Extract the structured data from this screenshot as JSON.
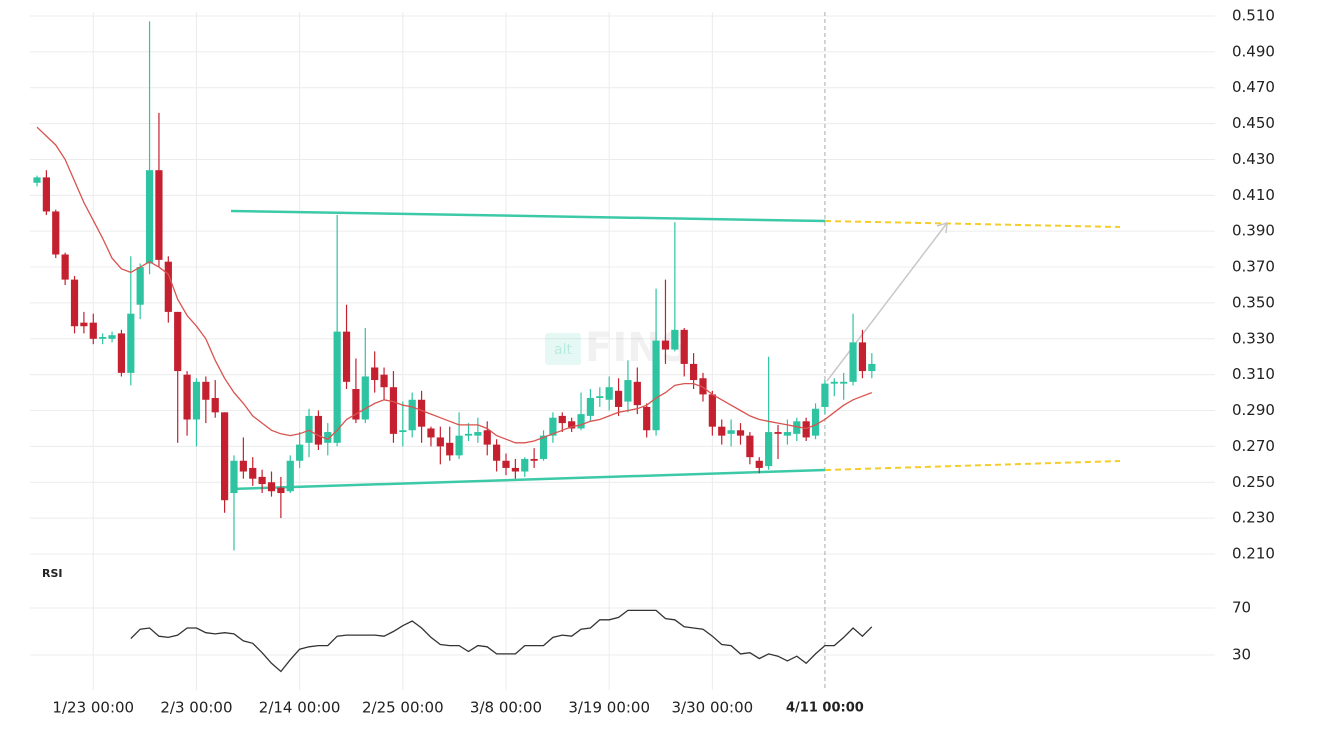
{
  "chart_data": [
    {
      "type": "candlestick",
      "categories": [
        null,
        null,
        null,
        null,
        null,
        null,
        "1/23 00:00",
        null,
        null,
        null,
        null,
        null,
        null,
        null,
        null,
        null,
        null,
        "2/3 00:00",
        null,
        null,
        null,
        null,
        null,
        null,
        null,
        null,
        null,
        null,
        "2/14 00:00",
        null,
        null,
        null,
        null,
        null,
        null,
        null,
        null,
        null,
        null,
        "2/25 00:00",
        null,
        null,
        null,
        null,
        null,
        null,
        null,
        null,
        null,
        null,
        "3/8 00:00",
        null,
        null,
        null,
        null,
        null,
        null,
        null,
        null,
        null,
        null,
        "3/19 00:00",
        null,
        null,
        null,
        null,
        null,
        null,
        null,
        null,
        null,
        null,
        "3/30 00:00",
        null,
        null,
        null,
        null,
        null,
        null,
        null,
        null,
        null,
        null,
        null,
        "4/11 00:00",
        null,
        null,
        null,
        null,
        null
      ],
      "open": [
        0.417,
        0.42,
        0.401,
        0.377,
        0.363,
        0.339,
        0.339,
        0.33,
        0.33,
        0.333,
        0.311,
        0.349,
        0.372,
        0.424,
        0.373,
        0.345,
        0.31,
        0.285,
        0.306,
        0.297,
        0.289,
        0.244,
        0.262,
        0.258,
        0.253,
        0.25,
        0.247,
        0.245,
        0.262,
        0.272,
        0.287,
        0.272,
        0.272,
        0.334,
        0.302,
        0.285,
        0.314,
        0.31,
        0.303,
        0.278,
        0.279,
        0.296,
        0.28,
        0.275,
        0.272,
        0.265,
        0.276,
        0.276,
        0.279,
        0.271,
        0.262,
        0.258,
        0.256,
        0.263,
        0.263,
        0.276,
        0.287,
        0.284,
        0.28,
        0.287,
        0.297,
        0.296,
        0.301,
        0.295,
        0.306,
        0.292,
        0.279,
        0.329,
        0.324,
        0.335,
        0.316,
        0.308,
        0.299,
        0.281,
        0.277,
        0.279,
        0.276,
        0.262,
        0.259,
        0.278,
        0.276,
        0.277,
        0.284,
        0.276,
        0.292,
        0.305,
        0.305,
        0.306,
        0.328,
        0.312
      ],
      "high": [
        0.421,
        0.424,
        0.402,
        0.378,
        0.365,
        0.345,
        0.344,
        0.333,
        0.334,
        0.335,
        0.376,
        0.372,
        0.507,
        0.456,
        0.376,
        0.345,
        0.312,
        0.308,
        0.309,
        0.307,
        0.289,
        0.265,
        0.275,
        0.264,
        0.257,
        0.256,
        0.253,
        0.265,
        0.278,
        0.291,
        0.29,
        0.283,
        0.399,
        0.349,
        0.319,
        0.336,
        0.323,
        0.314,
        0.312,
        0.295,
        0.3,
        0.301,
        0.281,
        0.281,
        0.281,
        0.289,
        0.283,
        0.286,
        0.284,
        0.274,
        0.266,
        0.263,
        0.264,
        0.269,
        0.279,
        0.289,
        0.289,
        0.286,
        0.3,
        0.302,
        0.303,
        0.309,
        0.308,
        0.318,
        0.314,
        0.294,
        0.358,
        0.363,
        0.395,
        0.336,
        0.322,
        0.311,
        0.301,
        0.285,
        0.285,
        0.283,
        0.278,
        0.264,
        0.32,
        0.282,
        0.285,
        0.286,
        0.286,
        0.294,
        0.307,
        0.308,
        0.311,
        0.344,
        0.335,
        0.322
      ],
      "low": [
        0.415,
        0.399,
        0.375,
        0.36,
        0.333,
        0.333,
        0.327,
        0.327,
        0.328,
        0.309,
        0.304,
        0.341,
        0.366,
        0.37,
        0.339,
        0.272,
        0.276,
        0.27,
        0.283,
        0.286,
        0.233,
        0.212,
        0.252,
        0.248,
        0.244,
        0.242,
        0.23,
        0.244,
        0.258,
        0.264,
        0.268,
        0.265,
        0.27,
        0.302,
        0.283,
        0.283,
        0.3,
        0.296,
        0.272,
        0.27,
        0.275,
        0.272,
        0.27,
        0.26,
        0.262,
        0.263,
        0.273,
        0.272,
        0.265,
        0.256,
        0.254,
        0.252,
        0.253,
        0.258,
        0.262,
        0.272,
        0.278,
        0.278,
        0.279,
        0.284,
        0.292,
        0.29,
        0.287,
        0.289,
        0.288,
        0.275,
        0.276,
        0.316,
        0.323,
        0.309,
        0.302,
        0.295,
        0.276,
        0.271,
        0.27,
        0.271,
        0.26,
        0.255,
        0.257,
        0.263,
        0.271,
        0.273,
        0.273,
        0.274,
        0.288,
        0.298,
        0.296,
        0.304,
        0.308,
        0.308
      ],
      "close": [
        0.42,
        0.401,
        0.377,
        0.363,
        0.337,
        0.337,
        0.33,
        0.331,
        0.332,
        0.311,
        0.344,
        0.37,
        0.424,
        0.374,
        0.345,
        0.312,
        0.285,
        0.306,
        0.296,
        0.289,
        0.24,
        0.262,
        0.256,
        0.252,
        0.249,
        0.245,
        0.244,
        0.262,
        0.271,
        0.287,
        0.271,
        0.278,
        0.334,
        0.306,
        0.285,
        0.309,
        0.307,
        0.303,
        0.277,
        0.279,
        0.296,
        0.281,
        0.275,
        0.27,
        0.265,
        0.276,
        0.277,
        0.278,
        0.271,
        0.262,
        0.258,
        0.256,
        0.263,
        0.262,
        0.276,
        0.286,
        0.283,
        0.28,
        0.288,
        0.297,
        0.298,
        0.303,
        0.292,
        0.307,
        0.293,
        0.279,
        0.329,
        0.324,
        0.335,
        0.316,
        0.307,
        0.299,
        0.281,
        0.276,
        0.279,
        0.276,
        0.264,
        0.258,
        0.278,
        0.277,
        0.278,
        0.284,
        0.275,
        0.291,
        0.305,
        0.306,
        0.306,
        0.328,
        0.312,
        0.316
      ],
      "up_color": "#2ec4a2",
      "down_color": "#c4202f",
      "sma": {
        "color": "#d9534f",
        "values": [
          0.448,
          0.443,
          0.438,
          0.43,
          0.418,
          0.406,
          0.396,
          0.386,
          0.375,
          0.369,
          0.367,
          0.37,
          0.373,
          0.37,
          0.366,
          0.352,
          0.343,
          0.337,
          0.33,
          0.318,
          0.308,
          0.3,
          0.294,
          0.287,
          0.283,
          0.279,
          0.277,
          0.276,
          0.277,
          0.279,
          0.276,
          0.274,
          0.279,
          0.285,
          0.288,
          0.291,
          0.294,
          0.296,
          0.295,
          0.293,
          0.292,
          0.29,
          0.288,
          0.286,
          0.284,
          0.282,
          0.282,
          0.282,
          0.28,
          0.276,
          0.274,
          0.272,
          0.272,
          0.273,
          0.275,
          0.277,
          0.279,
          0.281,
          0.282,
          0.284,
          0.285,
          0.287,
          0.289,
          0.29,
          0.291,
          0.293,
          0.297,
          0.3,
          0.304,
          0.305,
          0.305,
          0.303,
          0.299,
          0.296,
          0.293,
          0.29,
          0.287,
          0.285,
          0.284,
          0.283,
          0.282,
          0.281,
          0.28,
          0.282,
          0.285,
          0.289,
          0.293,
          0.296,
          0.298,
          0.3
        ]
      },
      "ylim": [
        0.193,
        0.515
      ],
      "yticks": [
        {
          "value": 0.51,
          "label": "0.510"
        },
        {
          "value": 0.49,
          "label": "0.490"
        },
        {
          "value": 0.47,
          "label": "0.470"
        },
        {
          "value": 0.45,
          "label": "0.450"
        },
        {
          "value": 0.43,
          "label": "0.430"
        },
        {
          "value": 0.41,
          "label": "0.410"
        },
        {
          "value": 0.39,
          "label": "0.390"
        },
        {
          "value": 0.37,
          "label": "0.370"
        },
        {
          "value": 0.35,
          "label": "0.350"
        },
        {
          "value": 0.33,
          "label": "0.330"
        },
        {
          "value": 0.31,
          "label": "0.310"
        },
        {
          "value": 0.29,
          "label": "0.290"
        },
        {
          "value": 0.27,
          "label": "0.270"
        },
        {
          "value": 0.25,
          "label": "0.250"
        },
        {
          "value": 0.23,
          "label": "0.230"
        },
        {
          "value": 0.21,
          "label": "0.210"
        }
      ],
      "grid": true,
      "crosshair": 84,
      "watermark_badge": "alt",
      "watermark": "FINS"
    },
    {
      "type": "line",
      "title": "RSI",
      "color": "#333333",
      "values": [
        null,
        null,
        null,
        null,
        null,
        null,
        null,
        null,
        null,
        null,
        44,
        52,
        53,
        46,
        45,
        47,
        53,
        53,
        49,
        48,
        49,
        48,
        42,
        40,
        32,
        23,
        16,
        26,
        35,
        37,
        38,
        38,
        46,
        47,
        47,
        47,
        47,
        46,
        50,
        55,
        59,
        53,
        45,
        39,
        38,
        38,
        33,
        38,
        37,
        31,
        31,
        31,
        38,
        38,
        38,
        45,
        47,
        46,
        52,
        53,
        60,
        60,
        62,
        68,
        68,
        68,
        68,
        61,
        60,
        54,
        53,
        52,
        46,
        39,
        38,
        31,
        32,
        27,
        31,
        29,
        25,
        29,
        23,
        31,
        38,
        38,
        45,
        53,
        46,
        54
      ],
      "ylim": [
        4,
        85
      ],
      "yticks": [
        70,
        30
      ],
      "grid": true
    }
  ]
}
